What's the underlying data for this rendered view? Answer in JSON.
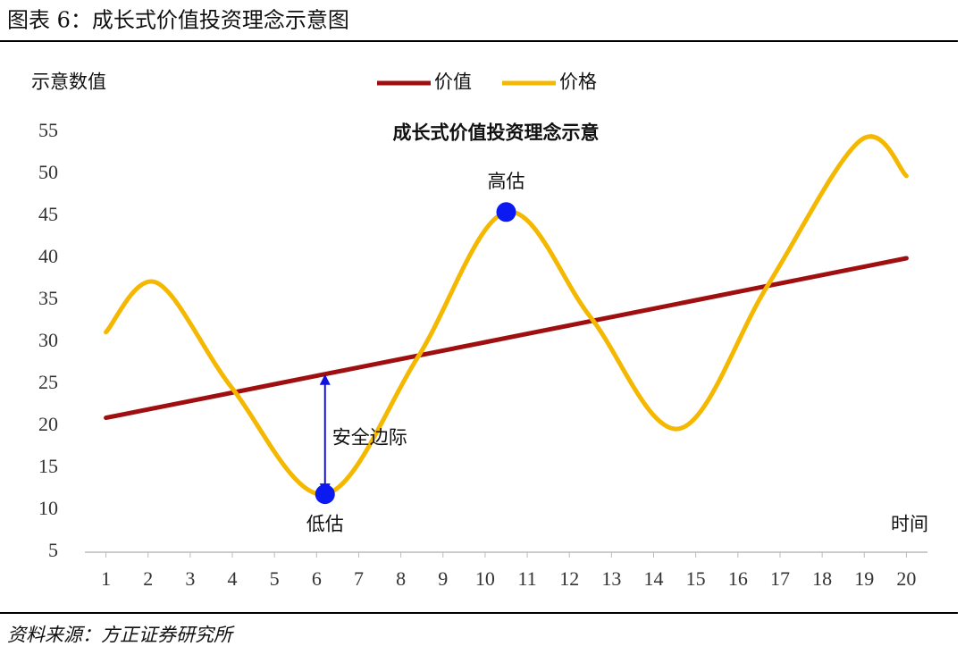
{
  "figure_title": "图表 6：成长式价值投资理念示意图",
  "source": "资料来源：方正证券研究所",
  "chart_data": {
    "type": "line",
    "title": "成长式价值投资理念示意",
    "y_label": "示意数值",
    "x_label": "时间",
    "xlim": [
      0.5,
      20.5
    ],
    "xticks": [
      1,
      2,
      3,
      4,
      5,
      6,
      7,
      8,
      9,
      10,
      11,
      12,
      13,
      14,
      15,
      16,
      17,
      18,
      19,
      20
    ],
    "ylim": [
      5,
      55
    ],
    "yticks": [
      5,
      10,
      15,
      20,
      25,
      30,
      35,
      40,
      45,
      50,
      55
    ],
    "series": [
      {
        "name": "价值",
        "color": "#a00f10",
        "smooth": false,
        "x": [
          1,
          2,
          3,
          4,
          5,
          6,
          7,
          8,
          9,
          10,
          11,
          12,
          13,
          14,
          15,
          16,
          17,
          18,
          19,
          20
        ],
        "values": [
          21,
          22,
          23,
          24,
          25,
          26,
          27,
          28,
          29,
          30,
          31,
          32,
          33,
          34,
          35,
          36,
          37,
          38,
          39,
          40
        ]
      },
      {
        "name": "价格",
        "color": "#f5b800",
        "smooth": true,
        "x": [
          1,
          2.2,
          4,
          6.2,
          8.4,
          10.5,
          12.5,
          14.6,
          16.7,
          18.9,
          20
        ],
        "values": [
          31.2,
          37.1,
          24.5,
          11.9,
          28.2,
          45.5,
          33,
          19.7,
          36.7,
          54,
          49.8
        ]
      }
    ],
    "points": [
      {
        "label": "低估",
        "x": 6.2,
        "y": 11.9,
        "color": "#0a1af0"
      },
      {
        "label": "高估",
        "x": 10.5,
        "y": 45.5,
        "color": "#0a1af0"
      }
    ],
    "arrow": {
      "text": "安全边际",
      "x": 6.2,
      "from": 26.2,
      "to": 11.9,
      "color": "#1010e0"
    }
  }
}
